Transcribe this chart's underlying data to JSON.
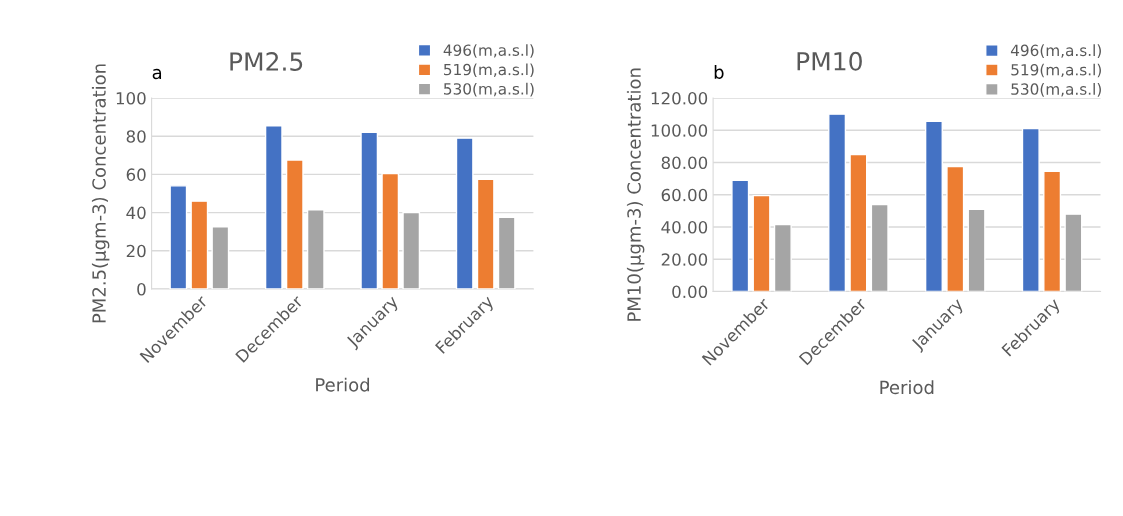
{
  "chart_data": [
    {
      "type": "bar",
      "title": "PM2.5",
      "xlabel": "Period",
      "ylabel": "PM2.5(µgm-3) Concentration",
      "annotations": [
        "a"
      ],
      "categories": [
        "November",
        "December",
        "January",
        "February"
      ],
      "series": [
        {
          "name": "496(m,a.s.l)",
          "color": "#4472c4",
          "values": [
            54,
            85.5,
            82,
            79
          ]
        },
        {
          "name": "519(m,a.s.l)",
          "color": "#ed7d31",
          "values": [
            46,
            67.5,
            60.5,
            57.5
          ]
        },
        {
          "name": "530(m,a.s.l)",
          "color": "#a5a5a5",
          "values": [
            32.5,
            41.5,
            40,
            37.5
          ]
        }
      ],
      "ylim": [
        0,
        100
      ],
      "yticks": [
        0,
        20,
        40,
        60,
        80,
        100
      ],
      "grid": "y",
      "legend": "top right"
    },
    {
      "type": "bar",
      "title": "PM10",
      "xlabel": "Period",
      "ylabel": "PM10(µgm-3) Concentration",
      "annotations": [
        "b"
      ],
      "categories": [
        "November",
        "December",
        "January",
        "February"
      ],
      "series": [
        {
          "name": "496(m,a.s.l)",
          "color": "#4472c4",
          "values": [
            69,
            110,
            105.5,
            101
          ]
        },
        {
          "name": "519(m,a.s.l)",
          "color": "#ed7d31",
          "values": [
            59.5,
            85,
            77.5,
            74.5
          ]
        },
        {
          "name": "530(m,a.s.l)",
          "color": "#a5a5a5",
          "values": [
            41.5,
            54,
            51,
            48
          ]
        }
      ],
      "ylim": [
        0,
        120
      ],
      "yticks": [
        {
          "value": 0,
          "label": "0.00"
        },
        {
          "value": 20,
          "label": "20.00"
        },
        {
          "value": 40,
          "label": "40.00"
        },
        {
          "value": 60,
          "label": "60.00"
        },
        {
          "value": 80,
          "label": "80.00"
        },
        {
          "value": 100,
          "label": "100.00"
        },
        {
          "value": 120,
          "label": "120.00"
        }
      ],
      "grid": "y",
      "legend": "top right"
    }
  ]
}
